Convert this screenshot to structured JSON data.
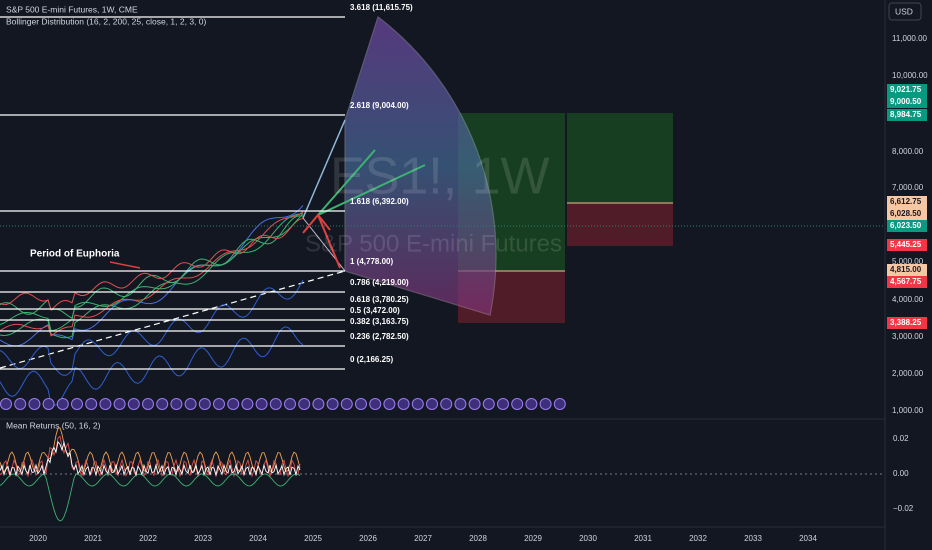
{
  "header": {
    "symbol": "S&P 500 E-mini Futures, 1W, CME",
    "indicator": "Bollinger Distribution (16, 2, 200, 25, close, 1, 2, 3, 0)",
    "currency": "USD"
  },
  "watermark": {
    "ticker": "ES1!, 1W",
    "name": "S&P 500 E-mini Futures"
  },
  "annotation": "Period of Euphoria",
  "fib_levels": [
    "3.618 (11,615.75)",
    "2.618 (9,004.00)",
    "1.618 (6,392.00)",
    "1 (4,778.00)",
    "0.786 (4,219.00)",
    "0.618 (3,780.25)",
    "0.5 (3,472.00)",
    "0.382 (3,163.75)",
    "0.236 (2,782.50)",
    "0 (2,166.25)"
  ],
  "price_axis": [
    "11,000.00",
    "10,000.00",
    "8,000.00",
    "7,000.00",
    "5,000.00",
    "4,000.00",
    "3,000.00",
    "2,000.00",
    "1,000.00"
  ],
  "price_badges": [
    "9,021.75",
    "9,000.50",
    "8,984.75",
    "6,612.75",
    "6,028.50",
    "6,023.50",
    "5,445.25",
    "4,815.00",
    "4,567.75",
    "3,388.25"
  ],
  "indicator2": {
    "title": "Mean Returns (50, 16, 2)",
    "axis": [
      "0.02",
      "0.00",
      "−0.02"
    ]
  },
  "time_axis": [
    "2020",
    "2021",
    "2022",
    "2023",
    "2024",
    "2025",
    "2026",
    "2027",
    "2028",
    "2029",
    "2030",
    "2031",
    "2032",
    "2033",
    "2034"
  ]
}
